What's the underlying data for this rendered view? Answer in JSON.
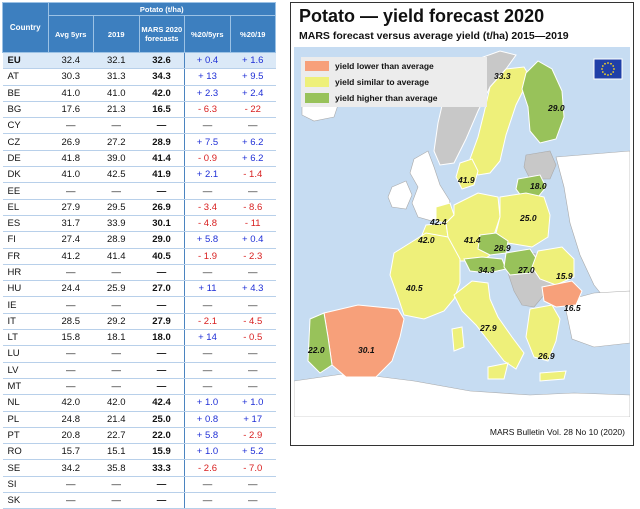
{
  "table": {
    "header": {
      "country": "Country",
      "group": "Potato (t/ha)",
      "cols": [
        "Avg 5yrs",
        "2019",
        "MARS 2020 forecasts",
        "%20/5yrs",
        "%20/19"
      ]
    },
    "rows": [
      {
        "c": "EU",
        "v": [
          "32.4",
          "32.1",
          "32.6",
          "+ 0.4",
          "+ 1.6"
        ]
      },
      {
        "c": "AT",
        "v": [
          "30.3",
          "31.3",
          "34.3",
          "+ 13",
          "+ 9.5"
        ]
      },
      {
        "c": "BE",
        "v": [
          "41.0",
          "41.0",
          "42.0",
          "+ 2.3",
          "+ 2.4"
        ]
      },
      {
        "c": "BG",
        "v": [
          "17.6",
          "21.3",
          "16.5",
          "- 6.3",
          "- 22"
        ]
      },
      {
        "c": "CY",
        "v": [
          "—",
          "—",
          "—",
          "—",
          "—"
        ]
      },
      {
        "c": "CZ",
        "v": [
          "26.9",
          "27.2",
          "28.9",
          "+ 7.5",
          "+ 6.2"
        ]
      },
      {
        "c": "DE",
        "v": [
          "41.8",
          "39.0",
          "41.4",
          "- 0.9",
          "+ 6.2"
        ]
      },
      {
        "c": "DK",
        "v": [
          "41.0",
          "42.5",
          "41.9",
          "+ 2.1",
          "- 1.4"
        ]
      },
      {
        "c": "EE",
        "v": [
          "—",
          "—",
          "—",
          "—",
          "—"
        ]
      },
      {
        "c": "EL",
        "v": [
          "27.9",
          "29.5",
          "26.9",
          "- 3.4",
          "- 8.6"
        ]
      },
      {
        "c": "ES",
        "v": [
          "31.7",
          "33.9",
          "30.1",
          "- 4.8",
          "- 11"
        ]
      },
      {
        "c": "FI",
        "v": [
          "27.4",
          "28.9",
          "29.0",
          "+ 5.8",
          "+ 0.4"
        ]
      },
      {
        "c": "FR",
        "v": [
          "41.2",
          "41.4",
          "40.5",
          "- 1.9",
          "- 2.3"
        ]
      },
      {
        "c": "HR",
        "v": [
          "—",
          "—",
          "—",
          "—",
          "—"
        ]
      },
      {
        "c": "HU",
        "v": [
          "24.4",
          "25.9",
          "27.0",
          "+ 11",
          "+ 4.3"
        ]
      },
      {
        "c": "IE",
        "v": [
          "—",
          "—",
          "—",
          "—",
          "—"
        ]
      },
      {
        "c": "IT",
        "v": [
          "28.5",
          "29.2",
          "27.9",
          "- 2.1",
          "- 4.5"
        ]
      },
      {
        "c": "LT",
        "v": [
          "15.8",
          "18.1",
          "18.0",
          "+ 14",
          "- 0.5"
        ]
      },
      {
        "c": "LU",
        "v": [
          "—",
          "—",
          "—",
          "—",
          "—"
        ]
      },
      {
        "c": "LV",
        "v": [
          "—",
          "—",
          "—",
          "—",
          "—"
        ]
      },
      {
        "c": "MT",
        "v": [
          "—",
          "—",
          "—",
          "—",
          "—"
        ]
      },
      {
        "c": "NL",
        "v": [
          "42.0",
          "42.0",
          "42.4",
          "+ 1.0",
          "+ 1.0"
        ]
      },
      {
        "c": "PL",
        "v": [
          "24.8",
          "21.4",
          "25.0",
          "+ 0.8",
          "+ 17"
        ]
      },
      {
        "c": "PT",
        "v": [
          "20.8",
          "22.7",
          "22.0",
          "+ 5.8",
          "- 2.9"
        ]
      },
      {
        "c": "RO",
        "v": [
          "15.7",
          "15.1",
          "15.9",
          "+ 1.0",
          "+ 5.2"
        ]
      },
      {
        "c": "SE",
        "v": [
          "34.2",
          "35.8",
          "33.3",
          "- 2.6",
          "- 7.0"
        ]
      },
      {
        "c": "SI",
        "v": [
          "—",
          "—",
          "—",
          "—",
          "—"
        ]
      },
      {
        "c": "SK",
        "v": [
          "—",
          "—",
          "—",
          "—",
          "—"
        ]
      }
    ]
  },
  "map": {
    "title": "Potato — yield forecast 2020",
    "subtitle": "MARS forecast versus average yield (t/ha) 2015—2019",
    "source": "MARS Bulletin Vol. 28 No 10 (2020)",
    "colors": {
      "lower": "#f7a07a",
      "similar": "#eef07a",
      "higher": "#98c25a",
      "nodata": "#c8c8c8",
      "sea": "#c6dcf2",
      "border": "#ffffff"
    },
    "legend": [
      {
        "label": "yield lower than average",
        "class": "lower"
      },
      {
        "label": "yield similar to average",
        "class": "similar"
      },
      {
        "label": "yield higher than average",
        "class": "higher"
      }
    ],
    "regions": [
      {
        "name": "finland",
        "class": "higher",
        "value": "29.0"
      },
      {
        "name": "sweden",
        "class": "similar",
        "value": "33.3"
      },
      {
        "name": "norway",
        "class": "nodata",
        "value": ""
      },
      {
        "name": "denmark",
        "class": "similar",
        "value": "41.9"
      },
      {
        "name": "lithuania",
        "class": "higher",
        "value": "18.0"
      },
      {
        "name": "netherlands",
        "class": "similar",
        "value": "42.4"
      },
      {
        "name": "belgium",
        "class": "similar",
        "value": "42.0"
      },
      {
        "name": "germany",
        "class": "similar",
        "value": "41.4"
      },
      {
        "name": "poland",
        "class": "similar",
        "value": "25.0"
      },
      {
        "name": "czechia",
        "class": "higher",
        "value": "28.9"
      },
      {
        "name": "austria",
        "class": "higher",
        "value": "34.3"
      },
      {
        "name": "hungary",
        "class": "higher",
        "value": "27.0"
      },
      {
        "name": "romania",
        "class": "similar",
        "value": "15.9"
      },
      {
        "name": "bulgaria",
        "class": "lower",
        "value": "16.5"
      },
      {
        "name": "france",
        "class": "similar",
        "value": "40.5"
      },
      {
        "name": "spain",
        "class": "lower",
        "value": "30.1"
      },
      {
        "name": "portugal",
        "class": "higher",
        "value": "22.0"
      },
      {
        "name": "italy",
        "class": "similar",
        "value": "27.9"
      },
      {
        "name": "greece",
        "class": "similar",
        "value": "26.9"
      }
    ]
  }
}
